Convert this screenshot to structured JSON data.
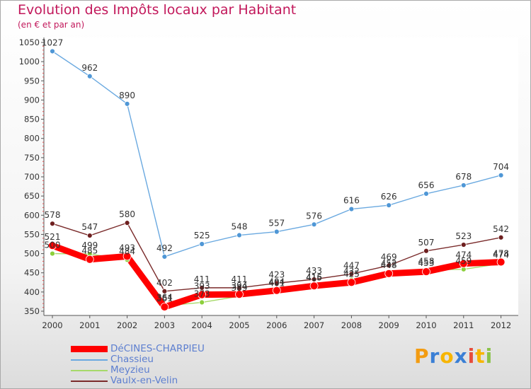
{
  "header": {
    "title": "Evolution des Impôts locaux par Habitant",
    "subtitle": "(en € et par an)"
  },
  "logo": {
    "letters": [
      "P",
      "r",
      "o",
      "x",
      "i",
      "t",
      "i"
    ],
    "colors": [
      "#f39c12",
      "#3a7fd5",
      "#f7b500",
      "#3a7fd5",
      "#e74c3c",
      "#f7b500",
      "#8bc34a"
    ]
  },
  "chart_data": {
    "type": "line",
    "title": "Evolution des Impôts locaux par Habitant",
    "subtitle": "(en € et par an)",
    "xlabel": "",
    "ylabel": "",
    "categories": [
      "2000",
      "2001",
      "2002",
      "2003",
      "2004",
      "2005",
      "2006",
      "2007",
      "2008",
      "2009",
      "2010",
      "2011",
      "2012"
    ],
    "ylim": [
      350,
      1050
    ],
    "yticks": [
      350,
      400,
      450,
      500,
      550,
      600,
      650,
      700,
      750,
      800,
      850,
      900,
      950,
      1000,
      1050
    ],
    "grid": false,
    "legend_position": "bottom-left",
    "series": [
      {
        "name": "DéCINES-CHARPIEU",
        "color": "#ff0000",
        "marker_color": "#ff0000",
        "width": "thick",
        "values": [
          521,
          485,
          493,
          361,
          393,
          394,
          404,
          416,
          425,
          448,
          453,
          474,
          478
        ],
        "labels": [
          "521",
          "485",
          "493",
          "361",
          "393",
          "394",
          "404",
          "416",
          "425",
          "448",
          "453",
          "474",
          "478"
        ]
      },
      {
        "name": "Chassieu",
        "color": "#6aa9e0",
        "marker_color": "#4f97d6",
        "width": "thin",
        "values": [
          1027,
          962,
          890,
          492,
          525,
          548,
          557,
          576,
          616,
          626,
          656,
          678,
          704
        ],
        "labels": [
          "1027",
          "962",
          "890",
          "492",
          "525",
          "548",
          "557",
          "576",
          "616",
          "626",
          "656",
          "678",
          "704"
        ]
      },
      {
        "name": "Meyzieu",
        "color": "#a6d96a",
        "marker_color": "#8ccf3c",
        "width": "thin",
        "values": [
          500,
          499,
          484,
          364,
          373,
          389,
          401,
          415,
          432,
          452,
          458,
          459,
          474
        ],
        "labels": [
          "500",
          "499",
          "484",
          "364",
          "373",
          "389",
          "401",
          "415",
          "432",
          "452",
          "458",
          "459",
          "474"
        ]
      },
      {
        "name": "Vaulx-en-Velin",
        "color": "#7a2b2b",
        "marker_color": "#6e1f1f",
        "width": "thin",
        "values": [
          578,
          547,
          580,
          402,
          411,
          411,
          423,
          433,
          447,
          469,
          507,
          523,
          542
        ],
        "labels": [
          "578",
          "547",
          "580",
          "402",
          "411",
          "411",
          "423",
          "433",
          "447",
          "469",
          "507",
          "523",
          "542"
        ]
      }
    ]
  }
}
